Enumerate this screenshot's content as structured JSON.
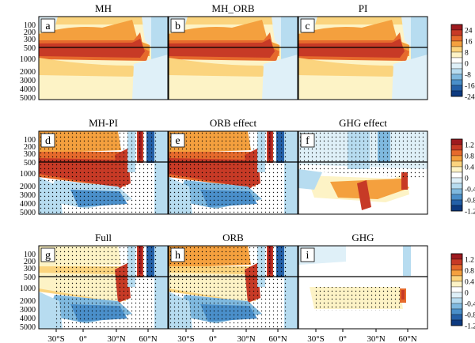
{
  "chart_data": [
    {
      "type": "heatmap",
      "y_ticks": [
        "0",
        "100",
        "200",
        "300",
        "500",
        "1000",
        "2000",
        "3000",
        "4000",
        "5000"
      ],
      "x_ticks": [
        "30°S",
        "0°",
        "30°N",
        "60°N"
      ],
      "x_range": [
        "40°S",
        "90°N"
      ],
      "y_range": [
        0,
        5500
      ],
      "dividing_line_depth": 500,
      "colorbar": {
        "ticks": [
          "24",
          "16",
          "8",
          "0",
          "-8",
          "-16",
          "-24"
        ],
        "colors": [
          "#9e1a1f",
          "#c73a26",
          "#e66a2c",
          "#f4a03e",
          "#fbd47e",
          "#fdf3c6",
          "#ffffff",
          "#dff0f8",
          "#b7dcf0",
          "#7fb9df",
          "#4a8fca",
          "#2460a8",
          "#0d3a80"
        ]
      },
      "panels": [
        {
          "id": "a",
          "title": "MH"
        },
        {
          "id": "b",
          "title": "MH_ORB"
        },
        {
          "id": "c",
          "title": "PI"
        }
      ]
    },
    {
      "type": "heatmap",
      "y_ticks": [
        "0",
        "100",
        "200",
        "300",
        "500",
        "1000",
        "2000",
        "3000",
        "4000",
        "5000"
      ],
      "x_ticks": [
        "30°S",
        "0°",
        "30°N",
        "60°N"
      ],
      "x_range": [
        "40°S",
        "90°N"
      ],
      "y_range": [
        0,
        5500
      ],
      "dividing_line_depth": 500,
      "colorbar": {
        "ticks": [
          "1.2",
          "0.8",
          "0.4",
          "0",
          "-0.4",
          "-0.8",
          "-1.2"
        ],
        "colors": [
          "#9e1a1f",
          "#c73a26",
          "#e66a2c",
          "#f4a03e",
          "#fbd47e",
          "#fdf3c6",
          "#ffffff",
          "#dff0f8",
          "#b7dcf0",
          "#7fb9df",
          "#4a8fca",
          "#2460a8",
          "#0d3a80"
        ]
      },
      "panels": [
        {
          "id": "d",
          "title": "MH-PI"
        },
        {
          "id": "e",
          "title": "ORB effect"
        },
        {
          "id": "f",
          "title": "GHG effect"
        }
      ]
    },
    {
      "type": "heatmap",
      "y_ticks": [
        "0",
        "100",
        "200",
        "300",
        "500",
        "1000",
        "2000",
        "3000",
        "4000",
        "5000"
      ],
      "x_ticks": [
        "30°S",
        "0°",
        "30°N",
        "60°N"
      ],
      "x_range": [
        "40°S",
        "90°N"
      ],
      "y_range": [
        0,
        5500
      ],
      "dividing_line_depth": 500,
      "colorbar": {
        "ticks": [
          "1.2",
          "0.8",
          "0.4",
          "0",
          "-0.4",
          "-0.8",
          "-1.2"
        ],
        "colors": [
          "#9e1a1f",
          "#c73a26",
          "#e66a2c",
          "#f4a03e",
          "#fbd47e",
          "#fdf3c6",
          "#ffffff",
          "#dff0f8",
          "#b7dcf0",
          "#7fb9df",
          "#4a8fca",
          "#2460a8",
          "#0d3a80"
        ]
      },
      "panels": [
        {
          "id": "g",
          "title": "Full"
        },
        {
          "id": "h",
          "title": "ORB"
        },
        {
          "id": "i",
          "title": "GHG"
        }
      ]
    }
  ]
}
